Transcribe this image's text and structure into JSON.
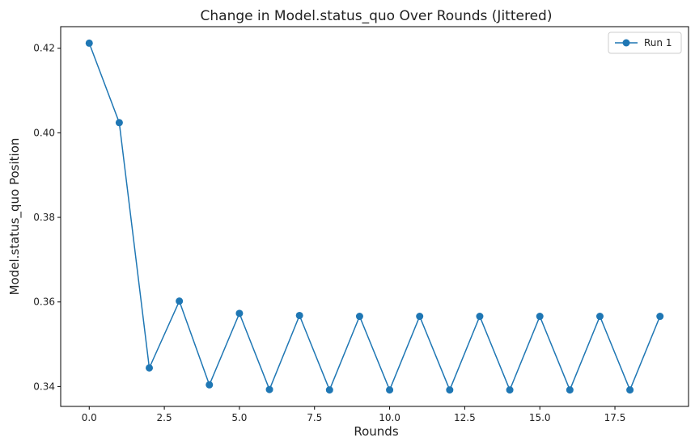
{
  "colors": {
    "series": "#1f77b4",
    "axis": "#000000",
    "legend_border": "#cccccc"
  },
  "chart_data": {
    "type": "line",
    "title": "Change in Model.status_quo Over Rounds (Jittered)",
    "xlabel": "Rounds",
    "ylabel": "Model.status_quo Position",
    "xlim": [
      -0.95,
      19.95
    ],
    "ylim": [
      0.3353,
      0.4251
    ],
    "xticks": [
      0,
      2.5,
      5,
      7.5,
      10,
      12.5,
      15,
      17.5
    ],
    "xtick_labels": [
      "0.0",
      "2.5",
      "5.0",
      "7.5",
      "10.0",
      "12.5",
      "15.0",
      "17.5"
    ],
    "yticks": [
      0.34,
      0.36,
      0.38,
      0.4,
      0.42
    ],
    "ytick_labels": [
      "0.34",
      "0.36",
      "0.38",
      "0.40",
      "0.42"
    ],
    "grid": false,
    "legend_position": "top-right",
    "series": [
      {
        "name": "Run 1",
        "marker": "circle",
        "x": [
          0,
          1,
          2,
          3,
          4,
          5,
          6,
          7,
          8,
          9,
          10,
          11,
          12,
          13,
          14,
          15,
          16,
          17,
          18,
          19
        ],
        "y": [
          0.4212,
          0.4024,
          0.3444,
          0.3602,
          0.3404,
          0.3573,
          0.3393,
          0.3568,
          0.3392,
          0.3566,
          0.3392,
          0.3566,
          0.3392,
          0.3566,
          0.3392,
          0.3566,
          0.3392,
          0.3566,
          0.3392,
          0.3566
        ]
      }
    ]
  }
}
